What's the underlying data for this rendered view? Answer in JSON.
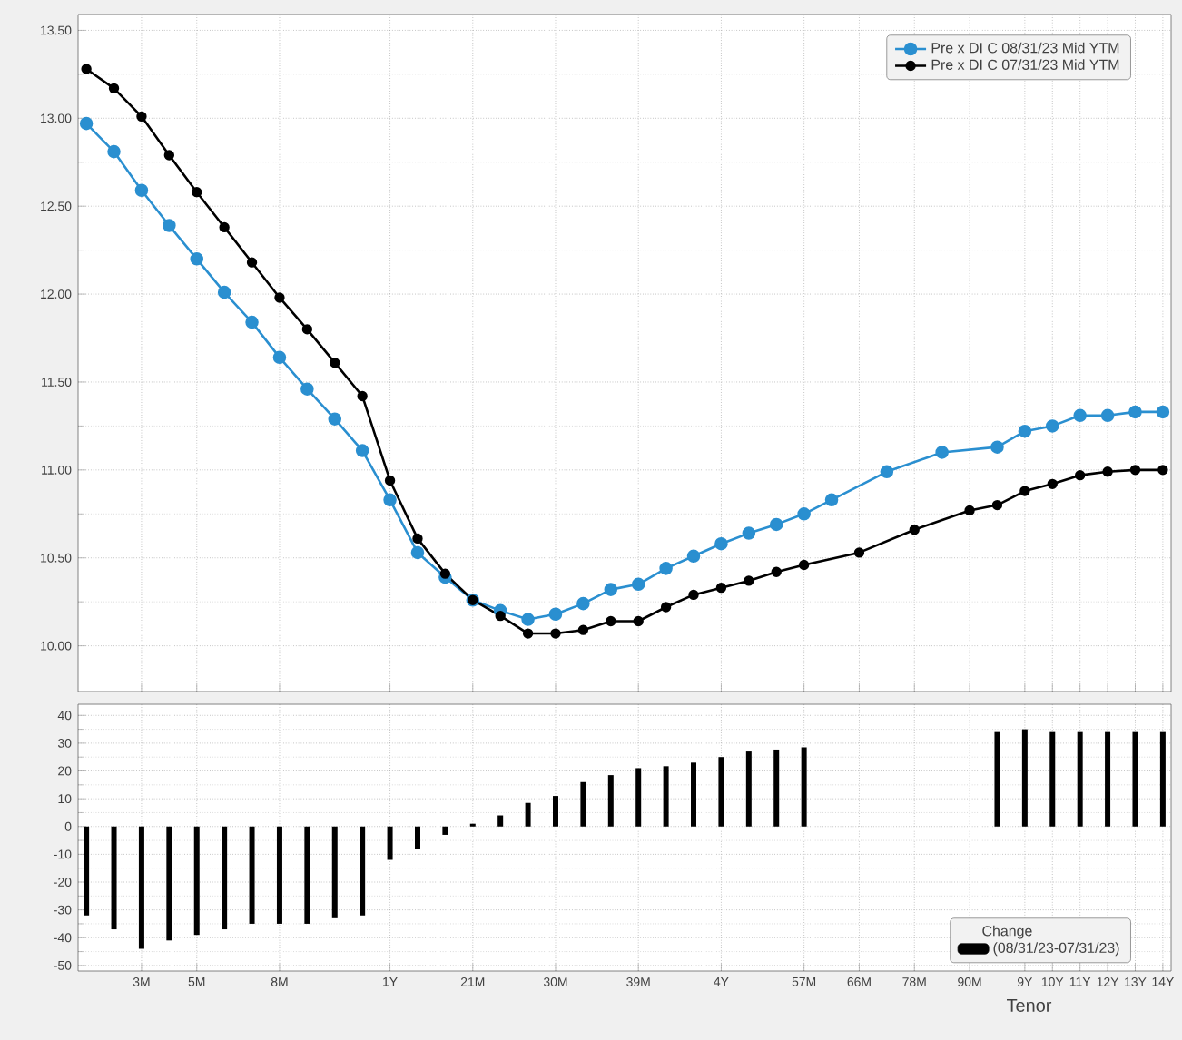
{
  "chart_data": [
    {
      "type": "line",
      "categories": [
        null,
        null,
        null,
        null,
        null,
        null,
        null,
        null,
        null,
        null,
        null,
        null,
        null,
        null,
        null,
        null,
        null,
        null,
        null,
        null,
        null,
        null,
        null,
        null,
        null,
        null,
        null,
        null,
        null,
        null,
        null,
        null,
        null,
        null,
        null,
        null,
        null,
        null,
        null,
        null
      ],
      "series": [
        {
          "name": "Pre x DI C 08/31/23 Mid YTM",
          "color": "#2a8fd0",
          "values": [
            12.97,
            12.81,
            12.59,
            12.39,
            12.2,
            12.01,
            11.84,
            11.64,
            11.46,
            11.29,
            11.11,
            10.83,
            10.53,
            10.39,
            10.26,
            10.2,
            10.15,
            10.18,
            10.24,
            10.32,
            10.35,
            10.44,
            10.51,
            10.58,
            10.64,
            10.69,
            10.75,
            10.83,
            null,
            10.99,
            null,
            11.1,
            null,
            11.13,
            11.22,
            11.25,
            11.31,
            11.31,
            11.33,
            11.33
          ]
        },
        {
          "name": "Pre x DI C 07/31/23 Mid YTM",
          "color": "#000000",
          "values": [
            13.28,
            13.17,
            13.01,
            12.79,
            12.58,
            12.38,
            12.18,
            11.98,
            11.8,
            11.61,
            11.42,
            10.94,
            10.61,
            10.41,
            10.26,
            10.17,
            10.07,
            10.07,
            10.09,
            10.14,
            10.14,
            10.22,
            10.29,
            10.33,
            10.37,
            10.42,
            10.46,
            null,
            10.53,
            null,
            10.66,
            null,
            10.77,
            10.8,
            10.88,
            10.92,
            10.97,
            10.99,
            11.0,
            11.0
          ]
        }
      ],
      "ylim": [
        9.74,
        13.59
      ],
      "yticks": [
        {
          "value": 10,
          "label": "10.00"
        },
        {
          "value": 10.5,
          "label": "10.50"
        },
        {
          "value": 11,
          "label": "11.00"
        },
        {
          "value": 11.5,
          "label": "11.50"
        },
        {
          "value": 12,
          "label": "12.00"
        },
        {
          "value": 12.5,
          "label": "12.50"
        },
        {
          "value": 13,
          "label": "13.00"
        },
        {
          "value": 13.5,
          "label": "13.50"
        }
      ],
      "grid": true,
      "legend": "top right",
      "marker": "circle",
      "tick_labels": "y"
    },
    {
      "type": "bar",
      "categories": [
        null,
        null,
        "3M",
        null,
        "5M",
        null,
        null,
        "8M",
        null,
        null,
        null,
        "1Y",
        null,
        null,
        "21M",
        null,
        null,
        "30M",
        null,
        null,
        "39M",
        null,
        null,
        "4Y",
        null,
        null,
        "57M",
        null,
        "66M",
        null,
        "78M",
        null,
        "90M",
        null,
        "9Y",
        "10Y",
        "11Y",
        "12Y",
        "13Y",
        "14Y"
      ],
      "series": [
        {
          "name": "(08/31/23-07/31/23)",
          "color": "#000000",
          "values": [
            -32,
            -37,
            -44,
            -41,
            -39,
            -37,
            -35,
            -35,
            -35,
            -33,
            -32,
            -12,
            -8,
            -3,
            1,
            4,
            8.5,
            11,
            16,
            18.5,
            21,
            21.7,
            23,
            25,
            27,
            27.7,
            28.5,
            null,
            null,
            null,
            null,
            null,
            null,
            34,
            35,
            34,
            34,
            34,
            34,
            34
          ]
        }
      ],
      "legend_title": "Change",
      "xlabel": "Tenor",
      "ylim": [
        -52,
        44
      ],
      "yticks": [
        -50,
        -40,
        -30,
        -20,
        -10,
        0,
        10,
        20,
        30,
        40
      ],
      "grid": true,
      "legend": "bottom right"
    }
  ]
}
